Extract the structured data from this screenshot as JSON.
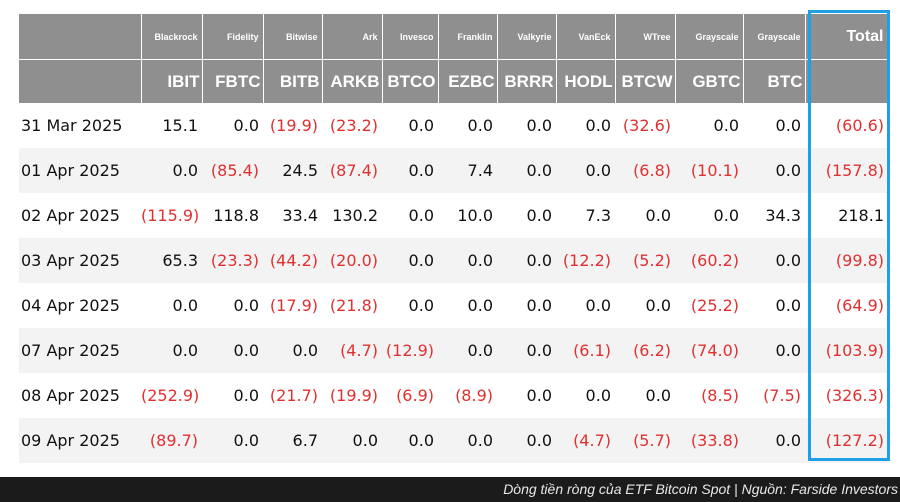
{
  "table": {
    "issuers": [
      "Blackrock",
      "Fidelity",
      "Bitwise",
      "Ark",
      "Invesco",
      "Franklin",
      "Valkyrie",
      "VanEck",
      "WTree",
      "Grayscale",
      "Grayscale"
    ],
    "tickers": [
      "IBIT",
      "FBTC",
      "BITB",
      "ARKB",
      "BTCO",
      "EZBC",
      "BRRR",
      "HODL",
      "BTCW",
      "GBTC",
      "BTC"
    ],
    "total_label": "Total",
    "rows": [
      {
        "date": "31 Mar 2025",
        "values": [
          "15.1",
          "0.0",
          "(19.9)",
          "(23.2)",
          "0.0",
          "0.0",
          "0.0",
          "0.0",
          "(32.6)",
          "0.0",
          "0.0"
        ],
        "total": "(60.6)"
      },
      {
        "date": "01 Apr 2025",
        "values": [
          "0.0",
          "(85.4)",
          "24.5",
          "(87.4)",
          "0.0",
          "7.4",
          "0.0",
          "0.0",
          "(6.8)",
          "(10.1)",
          "0.0"
        ],
        "total": "(157.8)"
      },
      {
        "date": "02 Apr 2025",
        "values": [
          "(115.9)",
          "118.8",
          "33.4",
          "130.2",
          "0.0",
          "10.0",
          "0.0",
          "7.3",
          "0.0",
          "0.0",
          "34.3"
        ],
        "total": "218.1"
      },
      {
        "date": "03 Apr 2025",
        "values": [
          "65.3",
          "(23.3)",
          "(44.2)",
          "(20.0)",
          "0.0",
          "0.0",
          "0.0",
          "(12.2)",
          "(5.2)",
          "(60.2)",
          "0.0"
        ],
        "total": "(99.8)"
      },
      {
        "date": "04 Apr 2025",
        "values": [
          "0.0",
          "0.0",
          "(17.9)",
          "(21.8)",
          "0.0",
          "0.0",
          "0.0",
          "0.0",
          "0.0",
          "(25.2)",
          "0.0"
        ],
        "total": "(64.9)"
      },
      {
        "date": "07 Apr 2025",
        "values": [
          "0.0",
          "0.0",
          "0.0",
          "(4.7)",
          "(12.9)",
          "0.0",
          "0.0",
          "(6.1)",
          "(6.2)",
          "(74.0)",
          "0.0"
        ],
        "total": "(103.9)"
      },
      {
        "date": "08 Apr 2025",
        "values": [
          "(252.9)",
          "0.0",
          "(21.7)",
          "(19.9)",
          "(6.9)",
          "(8.9)",
          "0.0",
          "0.0",
          "0.0",
          "(8.5)",
          "(7.5)"
        ],
        "total": "(326.3)"
      },
      {
        "date": "09 Apr 2025",
        "values": [
          "(89.7)",
          "0.0",
          "6.7",
          "0.0",
          "0.0",
          "0.0",
          "0.0",
          "(4.7)",
          "(5.7)",
          "(33.8)",
          "0.0"
        ],
        "total": "(127.2)"
      }
    ]
  },
  "colors": {
    "header_bg": "#8f8f8f",
    "negative": "#e03030",
    "highlight": "#1ea0e6",
    "footer_bg": "#1b1b1b"
  },
  "footer": {
    "caption": "Dòng tiền ròng của ETF Bitcoin Spot | Nguồn: Farside Investors"
  }
}
